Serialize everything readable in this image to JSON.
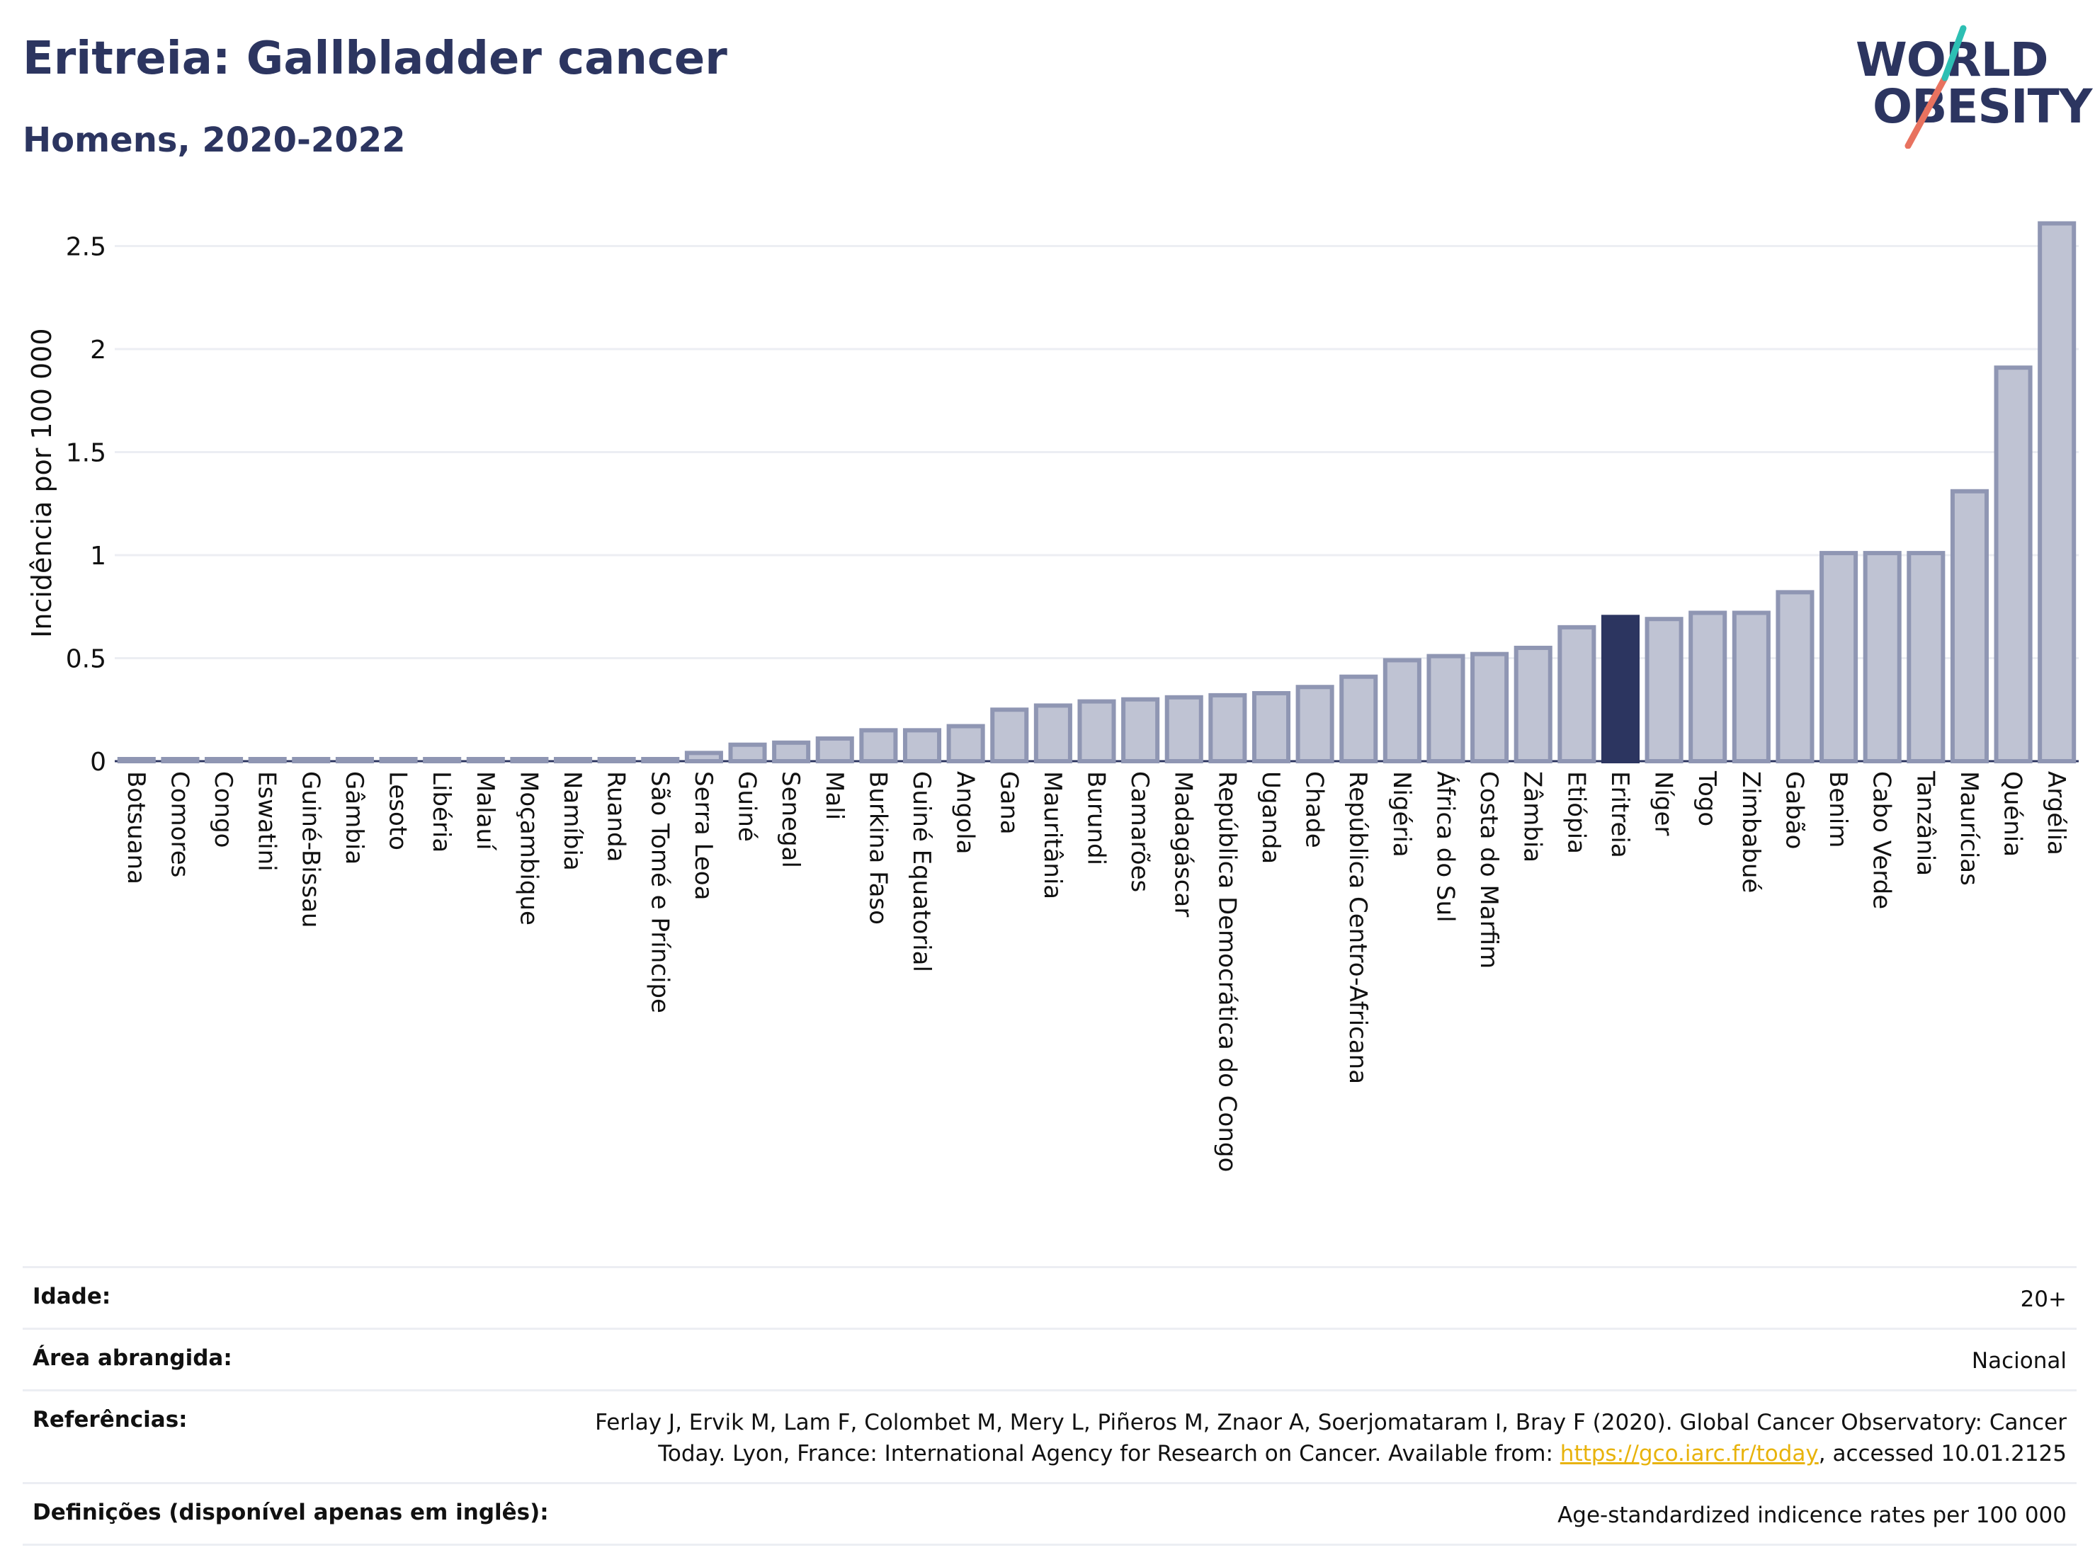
{
  "header": {
    "title": "Eritreia: Gallbladder cancer",
    "subtitle": "Homens, 2020-2022"
  },
  "logo": {
    "line1": "WORLD",
    "line2": "OBESITY"
  },
  "colors": {
    "bar": "#bfc3d3",
    "bar_border": "#8f96b3",
    "highlight": "#2c3560",
    "grid": "#eceef3",
    "text": "#2c3560"
  },
  "chart_data": {
    "type": "bar",
    "ylabel": "Incidência por 100 000",
    "xlabel": "",
    "ylim": [
      0,
      2.7
    ],
    "yticks": [
      0,
      0.5,
      1,
      1.5,
      2,
      2.5
    ],
    "ytick_labels": [
      "0",
      "0.5",
      "1",
      "1.5",
      "2",
      "2.5"
    ],
    "grid": true,
    "highlight": "Eritreia",
    "categories": [
      "Botsuana",
      "Comores",
      "Congo",
      "Eswatini",
      "Guiné-Bissau",
      "Gâmbia",
      "Lesoto",
      "Libéria",
      "Malauí",
      "Moçambique",
      "Namíbia",
      "Ruanda",
      "São Tomé e Príncipe",
      "Serra Leoa",
      "Guiné",
      "Senegal",
      "Mali",
      "Burkina Faso",
      "Guiné Equatorial",
      "Angola",
      "Gana",
      "Mauritânia",
      "Burundi",
      "Camarões",
      "Madagáscar",
      "República Democrática do Congo",
      "Uganda",
      "Chade",
      "República Centro-Africana",
      "Nigéria",
      "África do Sul",
      "Costa do Marfim",
      "Zâmbia",
      "Etiópia",
      "Eritreia",
      "Níger",
      "Togo",
      "Zimbabué",
      "Gabão",
      "Benim",
      "Cabo Verde",
      "Tanzânia",
      "Maurícias",
      "Quénia",
      "Argélia"
    ],
    "values": [
      0.01,
      0.01,
      0.01,
      0.01,
      0.01,
      0.01,
      0.01,
      0.01,
      0.01,
      0.01,
      0.01,
      0.01,
      0.01,
      0.04,
      0.08,
      0.09,
      0.11,
      0.15,
      0.15,
      0.17,
      0.25,
      0.27,
      0.29,
      0.3,
      0.31,
      0.32,
      0.33,
      0.36,
      0.41,
      0.49,
      0.51,
      0.52,
      0.55,
      0.65,
      0.7,
      0.69,
      0.72,
      0.72,
      0.82,
      1.01,
      1.01,
      1.01,
      1.31,
      1.91,
      2.61
    ]
  },
  "info": {
    "rows": [
      {
        "label": "Idade:",
        "value": "20+"
      },
      {
        "label": "Área abrangida:",
        "value": "Nacional"
      },
      {
        "label": "Referências:",
        "value_line1": "Ferlay J, Ervik M, Lam F, Colombet M, Mery L, Piñeros M, Znaor A, Soerjomataram I, Bray F (2020). Global Cancer Observatory: Cancer",
        "value_line2_pre": "Today. Lyon, France: International Agency for Research on Cancer. Available from: ",
        "link": "https://gco.iarc.fr/today",
        "value_line2_post": ", accessed 10.01.2125"
      },
      {
        "label": "Definições (disponível apenas em inglês):",
        "value": "Age-standardized indicence rates per 100 000"
      }
    ]
  }
}
